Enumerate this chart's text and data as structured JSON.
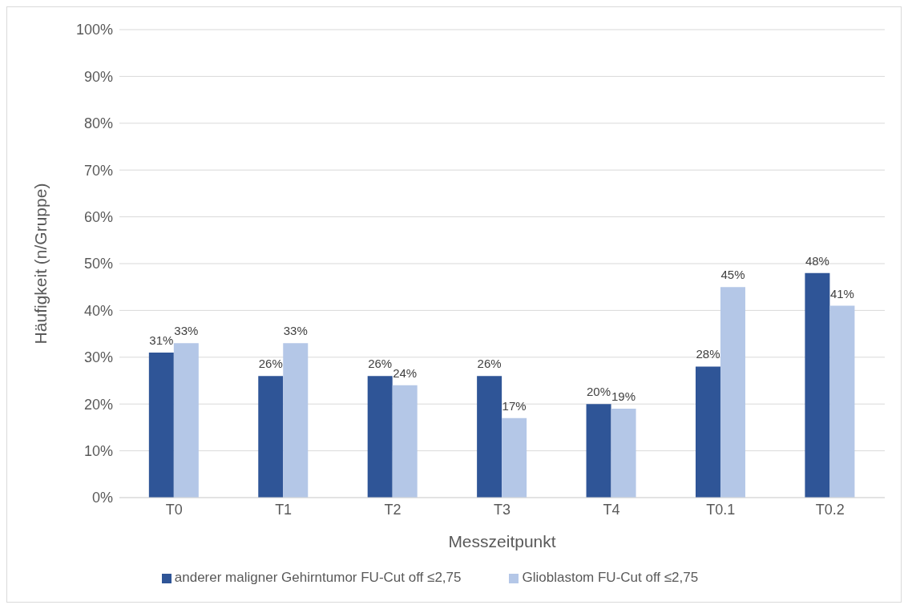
{
  "chart_data": {
    "type": "bar",
    "xlabel": "Messzeitpunkt",
    "ylabel": "Häufigkeit (n/Gruppe)",
    "categories": [
      "T0",
      "T1",
      "T2",
      "T3",
      "T4",
      "T0.1",
      "T0.2"
    ],
    "series": [
      {
        "name": "anderer maligner Gehirntumor FU-Cut off ≤2,75",
        "color": "#2f5597",
        "values": [
          31,
          26,
          26,
          26,
          20,
          28,
          48
        ],
        "value_labels": [
          "31%",
          "26%",
          "26%",
          "26%",
          "20%",
          "28%",
          "48%"
        ]
      },
      {
        "name": "Glioblastom FU-Cut off ≤2,75",
        "color": "#b4c7e7",
        "values": [
          33,
          33,
          24,
          17,
          19,
          45,
          41
        ],
        "value_labels": [
          "33%",
          "33%",
          "24%",
          "17%",
          "19%",
          "45%",
          "41%"
        ]
      }
    ],
    "ylim": [
      0,
      100
    ],
    "yticks": [
      {
        "value": 0,
        "label": "0%"
      },
      {
        "value": 10,
        "label": "10%"
      },
      {
        "value": 20,
        "label": "20%"
      },
      {
        "value": 30,
        "label": "30%"
      },
      {
        "value": 40,
        "label": "40%"
      },
      {
        "value": 50,
        "label": "50%"
      },
      {
        "value": 60,
        "label": "60%"
      },
      {
        "value": 70,
        "label": "70%"
      },
      {
        "value": 80,
        "label": "80%"
      },
      {
        "value": 90,
        "label": "90%"
      },
      {
        "value": 100,
        "label": "100%"
      }
    ],
    "grid": "y",
    "legend": "bottom"
  }
}
